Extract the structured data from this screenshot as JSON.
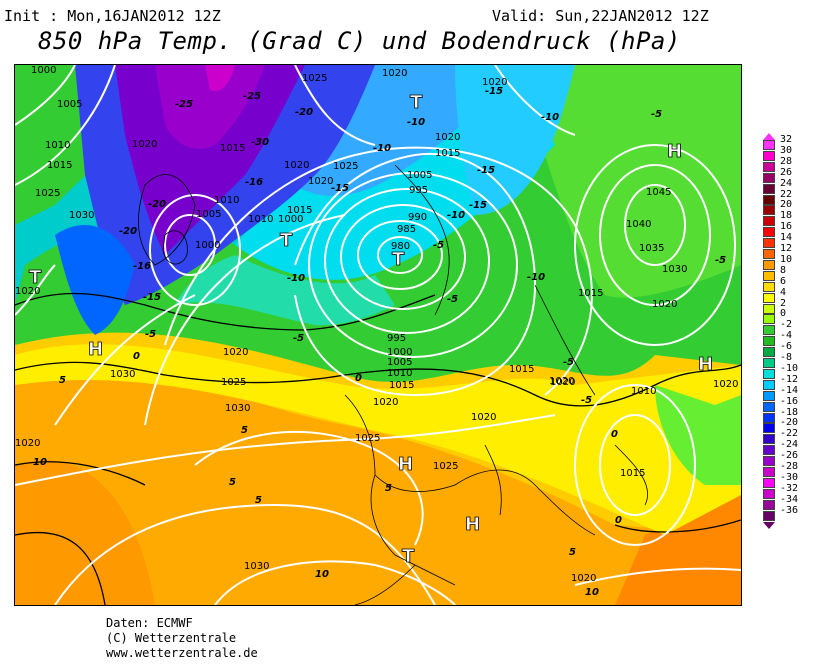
{
  "header": {
    "init": "Init : Mon,16JAN2012 12Z",
    "valid": "Valid: Sun,22JAN2012 12Z",
    "title": "850 hPa Temp. (Grad C) und Bodendruck (hPa)"
  },
  "legend": {
    "labels": [
      "32",
      "30",
      "28",
      "26",
      "24",
      "22",
      "20",
      "18",
      "16",
      "14",
      "12",
      "10",
      "8",
      "6",
      "4",
      "2",
      "0",
      "-2",
      "-4",
      "-6",
      "-8",
      "-10",
      "-12",
      "-14",
      "-16",
      "-18",
      "-20",
      "-22",
      "-24",
      "-26",
      "-28",
      "-30",
      "-32",
      "-34",
      "-36"
    ],
    "colors": [
      "#ff33ff",
      "#ff00cc",
      "#cc0099",
      "#990066",
      "#660033",
      "#660000",
      "#990000",
      "#cc0000",
      "#ff0000",
      "#ff3300",
      "#ff6600",
      "#ff9900",
      "#ffbb00",
      "#ffdd00",
      "#ffff00",
      "#ccff00",
      "#99ff00",
      "#33cc33",
      "#22bb22",
      "#00aa44",
      "#00cc88",
      "#00dddd",
      "#00ccff",
      "#0099ff",
      "#0066ff",
      "#0033ff",
      "#0000ee",
      "#3300cc",
      "#6600cc",
      "#9900cc",
      "#cc00cc",
      "#ff00ff",
      "#cc00cc",
      "#990099",
      "#660066"
    ]
  },
  "map": {
    "pressure_systems": [
      {
        "type": "H",
        "label": "H"
      },
      {
        "type": "H",
        "label": "H"
      },
      {
        "type": "H",
        "label": "H"
      },
      {
        "type": "H",
        "label": "H"
      },
      {
        "type": "H",
        "label": "H"
      },
      {
        "type": "T",
        "label": "T"
      },
      {
        "type": "T",
        "label": "T"
      },
      {
        "type": "T",
        "label": "T"
      },
      {
        "type": "T",
        "label": "T"
      },
      {
        "type": "T",
        "label": "T"
      }
    ],
    "isobar_labels": [
      "1000",
      "1005",
      "1010",
      "1015",
      "1020",
      "1025",
      "1030",
      "1035",
      "1040",
      "1045",
      "995",
      "990",
      "985",
      "980"
    ],
    "isotherm_labels": [
      "-25",
      "-20",
      "-16",
      "-15",
      "-10",
      "-5",
      "0",
      "5",
      "10",
      "-30"
    ]
  },
  "credits": {
    "line1": "Daten: ECMWF",
    "line2": "(C) Wetterzentrale",
    "line3": "www.wetterzentrale.de"
  }
}
